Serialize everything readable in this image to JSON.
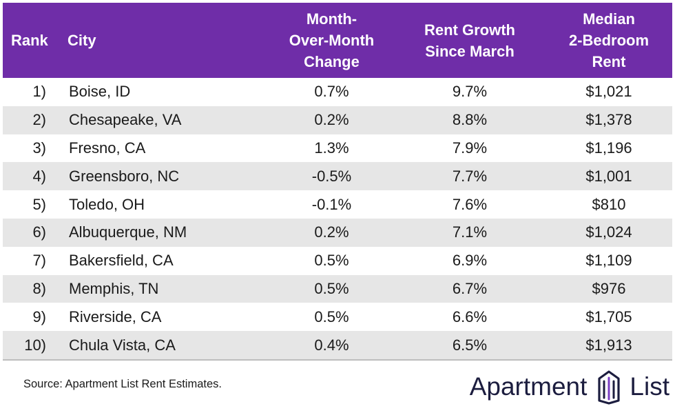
{
  "chart_data": {
    "type": "table",
    "columns": [
      "Rank",
      "City",
      "Month-Over-Month Change",
      "Rent Growth Since March",
      "Median 2-Bedroom Rent"
    ],
    "rows": [
      {
        "rank": "1)",
        "city": "Boise, ID",
        "mom": "0.7%",
        "growth": "9.7%",
        "rent": "$1,021"
      },
      {
        "rank": "2)",
        "city": "Chesapeake, VA",
        "mom": "0.2%",
        "growth": "8.8%",
        "rent": "$1,378"
      },
      {
        "rank": "3)",
        "city": "Fresno, CA",
        "mom": "1.3%",
        "growth": "7.9%",
        "rent": "$1,196"
      },
      {
        "rank": "4)",
        "city": "Greensboro, NC",
        "mom": "-0.5%",
        "growth": "7.7%",
        "rent": "$1,001"
      },
      {
        "rank": "5)",
        "city": "Toledo, OH",
        "mom": "-0.1%",
        "growth": "7.6%",
        "rent": "$810"
      },
      {
        "rank": "6)",
        "city": "Albuquerque, NM",
        "mom": "0.2%",
        "growth": "7.1%",
        "rent": "$1,024"
      },
      {
        "rank": "7)",
        "city": "Bakersfield, CA",
        "mom": "0.5%",
        "growth": "6.9%",
        "rent": "$1,109"
      },
      {
        "rank": "8)",
        "city": "Memphis, TN",
        "mom": "0.5%",
        "growth": "6.7%",
        "rent": "$976"
      },
      {
        "rank": "9)",
        "city": "Riverside, CA",
        "mom": "0.5%",
        "growth": "6.6%",
        "rent": "$1,705"
      },
      {
        "rank": "10)",
        "city": "Chula Vista, CA",
        "mom": "0.4%",
        "growth": "6.5%",
        "rent": "$1,913"
      }
    ]
  },
  "header": {
    "rank": "Rank",
    "city": "City",
    "mom": [
      "Month-",
      "Over-Month",
      "Change"
    ],
    "growth": [
      "Rent Growth",
      "Since March"
    ],
    "rent": [
      "Median",
      "2-Bedroom",
      "Rent"
    ]
  },
  "footer": {
    "source": "Source: Apartment List Rent Estimates.",
    "logo_left": "Apartment",
    "logo_right": "List"
  },
  "colors": {
    "header_bg": "#6f2da8",
    "row_shade": "#e6e6e6",
    "logo_dark": "#1c1d3f",
    "logo_accent": "#7b3fc4"
  }
}
